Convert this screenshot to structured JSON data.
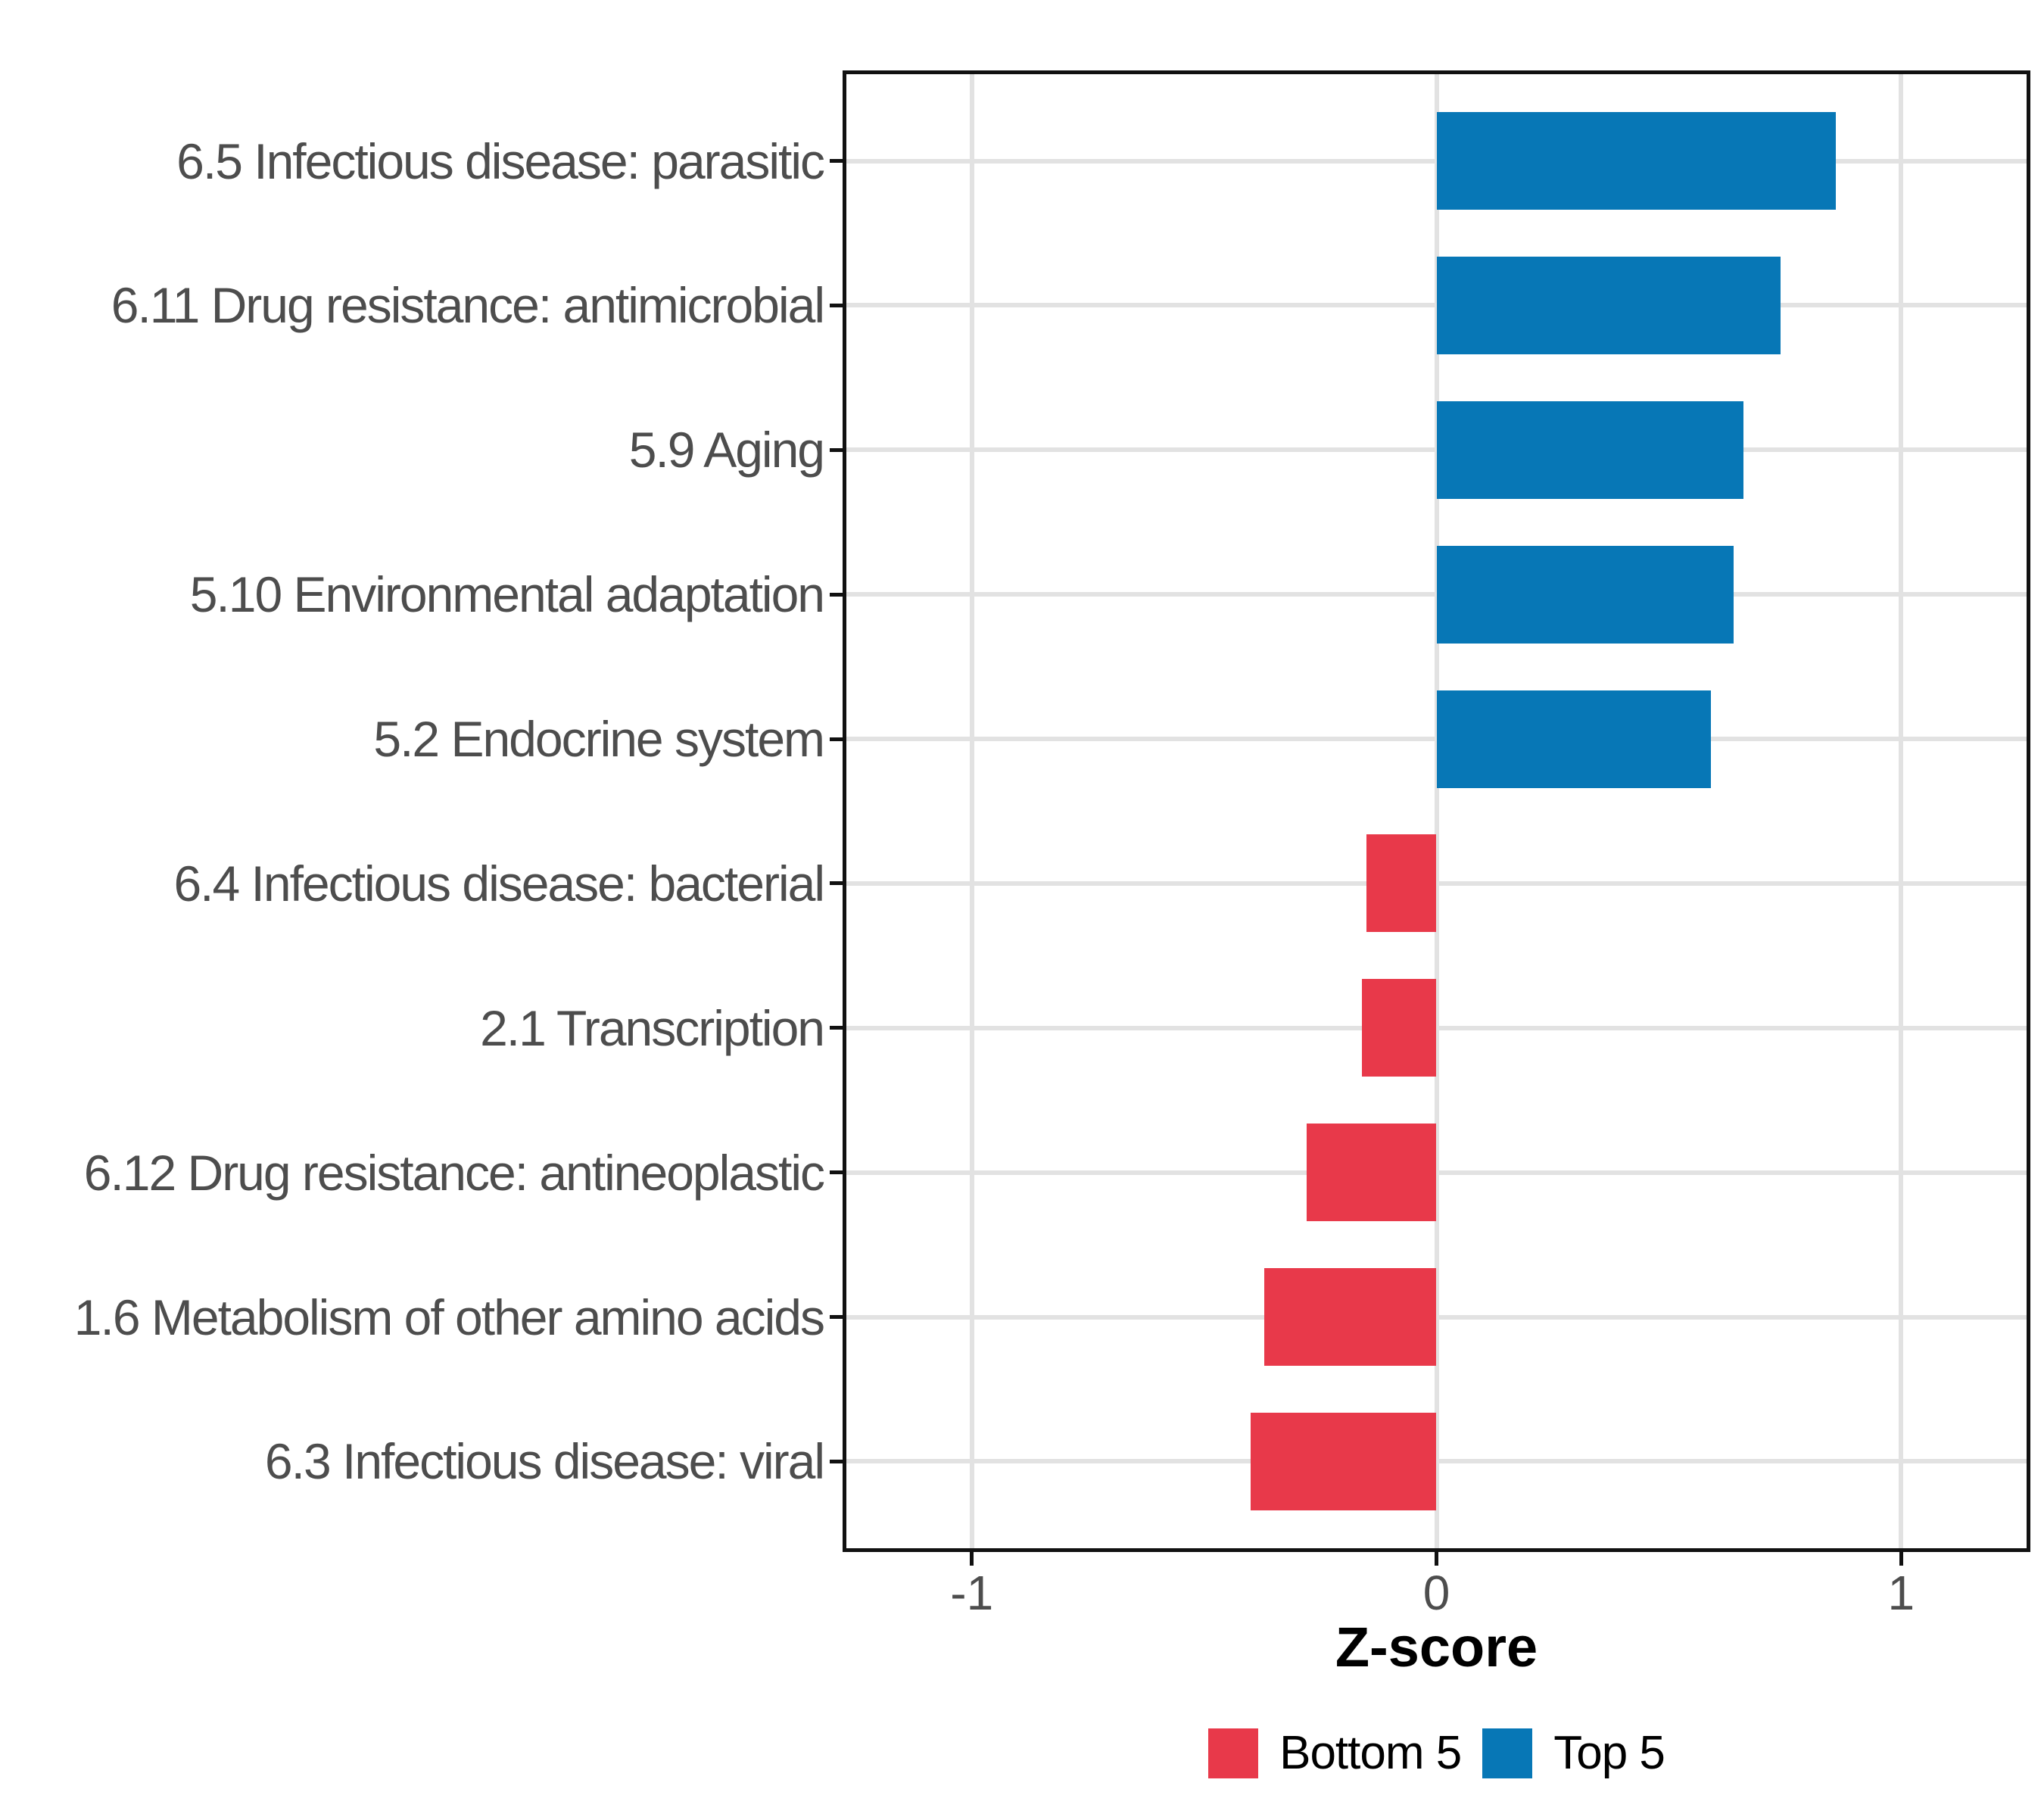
{
  "chart_data": {
    "type": "bar",
    "orientation": "horizontal",
    "title": "",
    "xlabel": "Z-score",
    "categories": [
      "6.5 Infectious disease: parasitic",
      "6.11 Drug resistance: antimicrobial",
      "5.9 Aging",
      "5.10 Environmental adaptation",
      "5.2 Endocrine system",
      "6.4 Infectious disease: bacterial",
      "2.1 Transcription",
      "6.12 Drug resistance: antineoplastic",
      "1.6 Metabolism of other amino acids",
      "6.3 Infectious disease: viral"
    ],
    "values": [
      0.86,
      0.74,
      0.66,
      0.64,
      0.59,
      -0.15,
      -0.16,
      -0.28,
      -0.37,
      -0.4
    ],
    "groups": [
      "top5",
      "top5",
      "top5",
      "top5",
      "top5",
      "bottom5",
      "bottom5",
      "bottom5",
      "bottom5",
      "bottom5"
    ],
    "group_colors": {
      "top5": "#0777B6",
      "bottom5": "#E8394A"
    },
    "x_ticks": [
      -1,
      0,
      1
    ],
    "x_tick_labels": [
      "-1",
      "0",
      "1"
    ],
    "xlim": [
      -1.27,
      1.27
    ],
    "grid": true,
    "grid_color": "#E2E2E2",
    "axis_text_color": "#4D4D4D",
    "panel_border_color": "#111111",
    "legend": {
      "position": "bottom",
      "entries": [
        {
          "label": "Bottom 5",
          "color": "#E8394A"
        },
        {
          "label": "Top 5",
          "color": "#0777B6"
        }
      ]
    }
  }
}
